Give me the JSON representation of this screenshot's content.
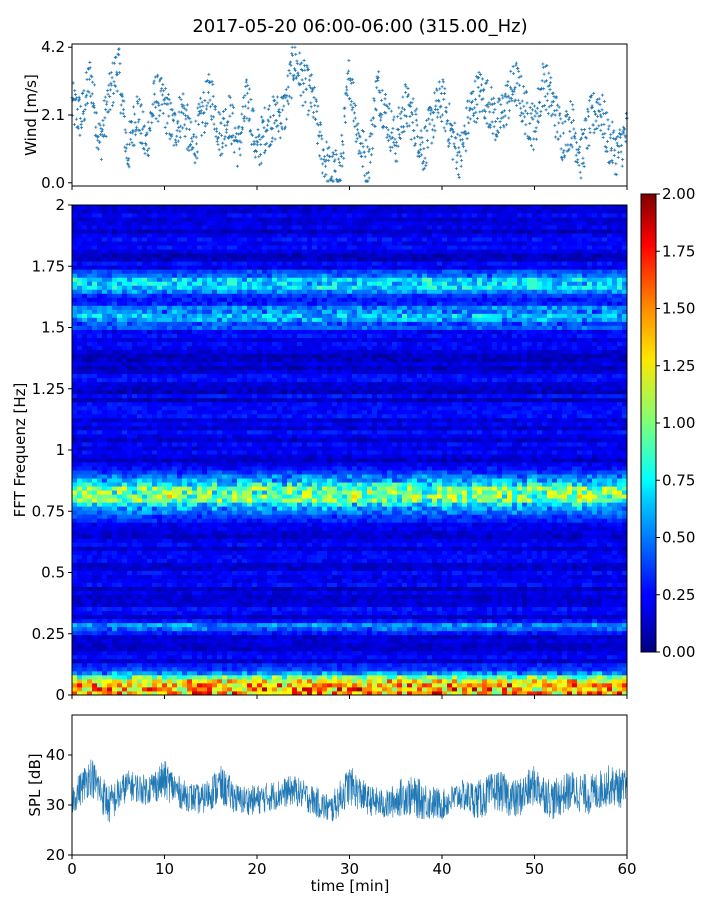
{
  "figure": {
    "title": "2017-05-20 06:00-06:00 (315.00_Hz)"
  },
  "colors": {
    "series": "#1f77b4",
    "colormap": "jet"
  },
  "chart_data": [
    {
      "id": "wind",
      "type": "scatter",
      "ylabel": "Wind [m/s]",
      "xlabel": "",
      "xlim": [
        0,
        60
      ],
      "ylim": [
        -0.1,
        4.3
      ],
      "yticks": [
        0.0,
        2.1,
        4.2
      ],
      "ytick_labels": [
        "0.0",
        "2.1",
        "4.2"
      ],
      "xticks": [
        0,
        10,
        20,
        30,
        40,
        50,
        60
      ],
      "xtick_labels_shown": false,
      "marker": "+",
      "series": [
        {
          "x": [
            0,
            1,
            2,
            3,
            4,
            5,
            6,
            7,
            8,
            9,
            10,
            11,
            12,
            13,
            14,
            15,
            16,
            17,
            18,
            19,
            20,
            21,
            22,
            23,
            24,
            25,
            26,
            27,
            28,
            29,
            30,
            31,
            32,
            33,
            34,
            35,
            36,
            37,
            38,
            39,
            40,
            41,
            42,
            43,
            44,
            45,
            46,
            47,
            48,
            49,
            50,
            51,
            52,
            53,
            54,
            55,
            56,
            57,
            58,
            59,
            60
          ],
          "values": [
            2.4,
            2.0,
            3.3,
            1.2,
            2.6,
            3.7,
            0.8,
            2.3,
            1.1,
            2.7,
            2.4,
            1.6,
            2.3,
            1.0,
            2.0,
            2.8,
            1.5,
            2.1,
            1.1,
            2.7,
            0.9,
            1.8,
            2.0,
            2.2,
            3.8,
            3.1,
            2.6,
            1.0,
            0.3,
            0.3,
            3.4,
            1.4,
            0.5,
            3.0,
            2.1,
            1.2,
            2.4,
            1.9,
            1.0,
            2.0,
            2.6,
            1.5,
            0.8,
            2.2,
            2.8,
            2.5,
            1.8,
            2.5,
            3.1,
            2.2,
            1.7,
            3.2,
            2.4,
            1.4,
            1.9,
            0.8,
            1.9,
            2.4,
            1.3,
            0.9,
            1.6
          ]
        }
      ]
    },
    {
      "id": "spectrogram",
      "type": "heatmap",
      "ylabel": "FFT Frequenz [Hz]",
      "xlabel": "",
      "xlim": [
        0,
        60
      ],
      "ylim": [
        0,
        2
      ],
      "yticks": [
        0,
        0.25,
        0.5,
        0.75,
        1,
        1.25,
        1.5,
        1.75,
        2
      ],
      "ytick_labels": [
        "0",
        "0.25",
        "0.5",
        "0.75",
        "1",
        "1.25",
        "1.5",
        "1.75",
        "2"
      ],
      "colorbar": {
        "min": 0.0,
        "max": 2.0,
        "ticks": [
          0.0,
          0.25,
          0.5,
          0.75,
          1.0,
          1.25,
          1.5,
          1.75,
          2.0
        ],
        "tick_labels": [
          "0.00",
          "0.25",
          "0.50",
          "0.75",
          "1.00",
          "1.25",
          "1.50",
          "1.75",
          "2.00"
        ],
        "colormap": "jet"
      },
      "baseline_level": 0.2,
      "bands": [
        {
          "freq": 0.02,
          "width": 0.04,
          "level": 1.3
        },
        {
          "freq": 0.07,
          "width": 0.03,
          "level": 0.6
        },
        {
          "freq": 0.82,
          "width": 0.07,
          "level": 0.85
        },
        {
          "freq": 0.28,
          "width": 0.02,
          "level": 0.35
        },
        {
          "freq": 1.68,
          "width": 0.04,
          "level": 0.55
        },
        {
          "freq": 1.55,
          "width": 0.05,
          "level": 0.45
        }
      ]
    },
    {
      "id": "spl",
      "type": "line",
      "ylabel": "SPL [dB]",
      "xlabel": "time [min]",
      "xlim": [
        0,
        60
      ],
      "ylim": [
        20,
        48
      ],
      "yticks": [
        20,
        30,
        40
      ],
      "ytick_labels": [
        "20",
        "30",
        "40"
      ],
      "xticks": [
        0,
        10,
        20,
        30,
        40,
        50,
        60
      ],
      "xtick_labels": [
        "0",
        "10",
        "20",
        "30",
        "40",
        "50",
        "60"
      ],
      "series": [
        {
          "x": [
            0,
            2,
            4,
            6,
            8,
            10,
            12,
            14,
            16,
            18,
            20,
            22,
            24,
            26,
            28,
            30,
            32,
            34,
            36,
            38,
            40,
            42,
            44,
            46,
            48,
            50,
            52,
            54,
            56,
            58,
            60
          ],
          "values": [
            31,
            36,
            30,
            34,
            33,
            35,
            32,
            31,
            34,
            31,
            31,
            32,
            33,
            31,
            29,
            34,
            31,
            30,
            32,
            31,
            30,
            32,
            31,
            33,
            31,
            34,
            31,
            33,
            32,
            34,
            33
          ],
          "spread": [
            3,
            4,
            4,
            3,
            3,
            4,
            3,
            3,
            4,
            3,
            3,
            3,
            3,
            3,
            3,
            4,
            3,
            3,
            4,
            4,
            3,
            3,
            4,
            4,
            4,
            4,
            4,
            4,
            4,
            4,
            4
          ]
        }
      ]
    }
  ]
}
